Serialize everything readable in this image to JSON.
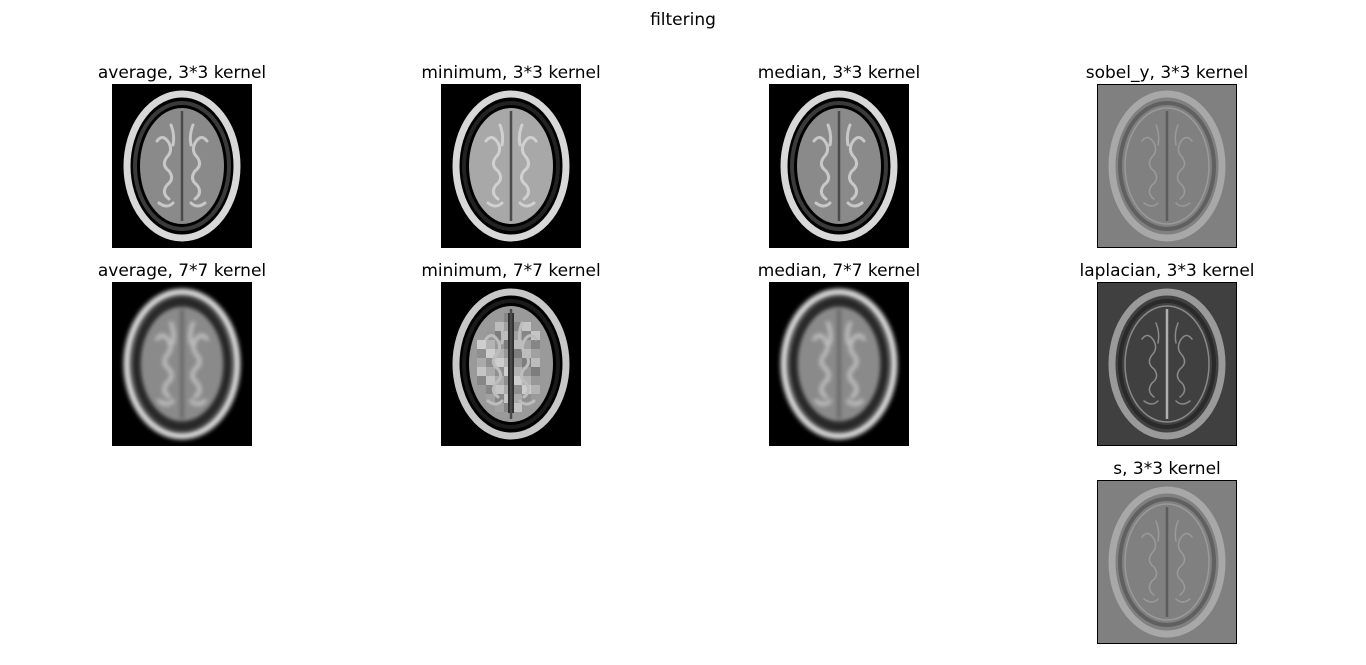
{
  "figure": {
    "title": "filtering"
  },
  "panels": [
    {
      "id": "p0",
      "title": "average, 3*3 kernel",
      "style": "smooth",
      "bg": "#000000"
    },
    {
      "id": "p1",
      "title": "minimum, 3*3 kernel",
      "style": "min",
      "bg": "#000000"
    },
    {
      "id": "p2",
      "title": "median, 3*3 kernel",
      "style": "smooth",
      "bg": "#000000"
    },
    {
      "id": "p3",
      "title": "sobel_y, 3*3 kernel",
      "style": "edge",
      "bg": "#808080"
    },
    {
      "id": "p4",
      "title": "average, 7*7 kernel",
      "style": "blur",
      "bg": "#000000"
    },
    {
      "id": "p5",
      "title": "minimum, 7*7 kernel",
      "style": "blocky",
      "bg": "#000000"
    },
    {
      "id": "p6",
      "title": "median, 7*7 kernel",
      "style": "blur",
      "bg": "#000000"
    },
    {
      "id": "p7",
      "title": "laplacian, 3*3 kernel",
      "style": "laplacian",
      "bg": "#404040"
    },
    {
      "id": "p8",
      "title": "s, 3*3 kernel",
      "style": "edge",
      "bg": "#808080"
    }
  ]
}
